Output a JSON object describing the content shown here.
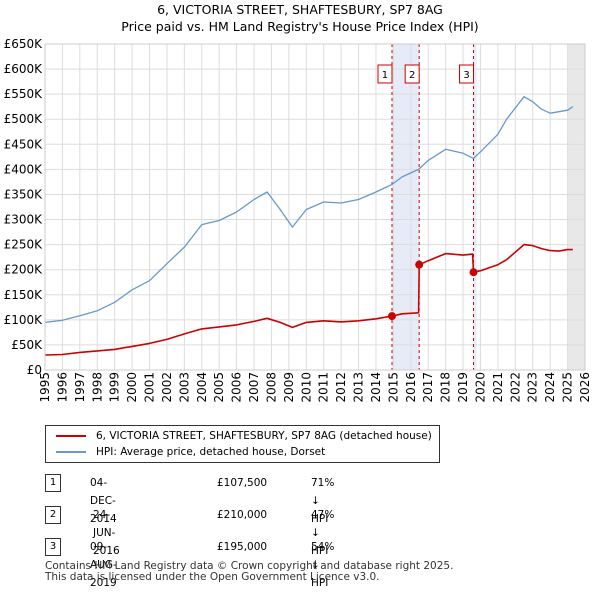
{
  "chart_data": {
    "type": "line",
    "title": "6, VICTORIA STREET, SHAFTESBURY, SP7 8AG",
    "subtitle": "Price paid vs. HM Land Registry's House Price Index (HPI)",
    "x_range": [
      1995,
      2026
    ],
    "y_range": [
      0,
      650000
    ],
    "y_ticks": [
      {
        "value": 0,
        "label": "£0"
      },
      {
        "value": 50000,
        "label": "£50K"
      },
      {
        "value": 100000,
        "label": "£100K"
      },
      {
        "value": 150000,
        "label": "£150K"
      },
      {
        "value": 200000,
        "label": "£200K"
      },
      {
        "value": 250000,
        "label": "£250K"
      },
      {
        "value": 300000,
        "label": "£300K"
      },
      {
        "value": 350000,
        "label": "£350K"
      },
      {
        "value": 400000,
        "label": "£400K"
      },
      {
        "value": 450000,
        "label": "£450K"
      },
      {
        "value": 500000,
        "label": "£500K"
      },
      {
        "value": 550000,
        "label": "£550K"
      },
      {
        "value": 600000,
        "label": "£600K"
      },
      {
        "value": 650000,
        "label": "£650K"
      }
    ],
    "x_ticks": [
      "1995",
      "1996",
      "1997",
      "1998",
      "1999",
      "2000",
      "2001",
      "2002",
      "2003",
      "2004",
      "2005",
      "2006",
      "2007",
      "2008",
      "2009",
      "2010",
      "2011",
      "2012",
      "2013",
      "2014",
      "2015",
      "2016",
      "2017",
      "2018",
      "2019",
      "2020",
      "2021",
      "2022",
      "2023",
      "2024",
      "2025",
      "2026"
    ],
    "forecast_start": 2025.0,
    "series": [
      {
        "name": "6, VICTORIA STREET, SHAFTESBURY, SP7 8AG (detached house)",
        "color": "#cc0000",
        "points": [
          [
            1995,
            30000
          ],
          [
            1996,
            31000
          ],
          [
            1997,
            35000
          ],
          [
            1998,
            38000
          ],
          [
            1999,
            41000
          ],
          [
            2000,
            47000
          ],
          [
            2001,
            53000
          ],
          [
            2002,
            61000
          ],
          [
            2003,
            72000
          ],
          [
            2004,
            82000
          ],
          [
            2005,
            86000
          ],
          [
            2006,
            90000
          ],
          [
            2007,
            97000
          ],
          [
            2007.75,
            103000
          ],
          [
            2008.5,
            95000
          ],
          [
            2009.2,
            85000
          ],
          [
            2010,
            95000
          ],
          [
            2011,
            98000
          ],
          [
            2012,
            96000
          ],
          [
            2013,
            98000
          ],
          [
            2014,
            102000
          ],
          [
            2014.92,
            107500
          ],
          [
            2015.5,
            112000
          ],
          [
            2016.45,
            114000
          ],
          [
            2016.48,
            210000
          ],
          [
            2017,
            218000
          ],
          [
            2018,
            232000
          ],
          [
            2019,
            229000
          ],
          [
            2019.55,
            231000
          ],
          [
            2019.6,
            195000
          ],
          [
            2020,
            198000
          ],
          [
            2021,
            210000
          ],
          [
            2021.5,
            220000
          ],
          [
            2022.5,
            250000
          ],
          [
            2023,
            248000
          ],
          [
            2023.5,
            242000
          ],
          [
            2024,
            238000
          ],
          [
            2024.5,
            237000
          ],
          [
            2025,
            240000
          ],
          [
            2025.3,
            240000
          ]
        ]
      },
      {
        "name": "HPI: Average price, detached house, Dorset",
        "color": "#6699cc",
        "points": [
          [
            1995,
            95000
          ],
          [
            1996,
            99000
          ],
          [
            1997,
            108000
          ],
          [
            1998,
            118000
          ],
          [
            1999,
            135000
          ],
          [
            2000,
            160000
          ],
          [
            2001,
            178000
          ],
          [
            2002,
            212000
          ],
          [
            2003,
            245000
          ],
          [
            2004,
            290000
          ],
          [
            2005,
            298000
          ],
          [
            2006,
            315000
          ],
          [
            2007,
            340000
          ],
          [
            2007.75,
            355000
          ],
          [
            2008.5,
            320000
          ],
          [
            2009.2,
            285000
          ],
          [
            2010,
            320000
          ],
          [
            2011,
            335000
          ],
          [
            2012,
            333000
          ],
          [
            2013,
            340000
          ],
          [
            2014,
            355000
          ],
          [
            2014.92,
            370000
          ],
          [
            2015.5,
            385000
          ],
          [
            2016.45,
            400000
          ],
          [
            2017,
            418000
          ],
          [
            2018,
            440000
          ],
          [
            2019,
            432000
          ],
          [
            2019.6,
            422000
          ],
          [
            2020,
            435000
          ],
          [
            2021,
            470000
          ],
          [
            2021.5,
            500000
          ],
          [
            2022.5,
            545000
          ],
          [
            2023,
            535000
          ],
          [
            2023.5,
            520000
          ],
          [
            2024,
            512000
          ],
          [
            2024.5,
            515000
          ],
          [
            2025,
            518000
          ],
          [
            2025.3,
            525000
          ]
        ]
      }
    ],
    "markers": [
      {
        "label": "1",
        "x": 2014.92,
        "y": 107500
      },
      {
        "label": "2",
        "x": 2016.48,
        "y": 210000
      },
      {
        "label": "3",
        "x": 2019.6,
        "y": 195000
      }
    ]
  },
  "legend": {
    "items": [
      {
        "label": "6, VICTORIA STREET, SHAFTESBURY, SP7 8AG (detached house)",
        "color": "#cc0000"
      },
      {
        "label": "HPI: Average price, detached house, Dorset",
        "color": "#6699cc"
      }
    ]
  },
  "transactions": [
    {
      "num": "1",
      "date": "04-DEC-2014",
      "price": "£107,500",
      "hpi": "71% ↓ HPI"
    },
    {
      "num": "2",
      "date": "24-JUN-2016",
      "price": "£210,000",
      "hpi": "47% ↓ HPI"
    },
    {
      "num": "3",
      "date": "09-AUG-2019",
      "price": "£195,000",
      "hpi": "54% ↓ HPI"
    }
  ],
  "footer": {
    "line1": "Contains HM Land Registry data © Crown copyright and database right 2025.",
    "line2": "This data is licensed under the Open Government Licence v3.0."
  }
}
